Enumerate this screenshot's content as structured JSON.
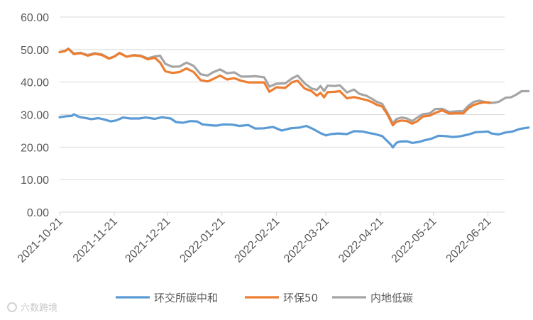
{
  "chart_data": {
    "type": "line",
    "title": "",
    "xlabel": "",
    "ylabel": "",
    "ylim": [
      0,
      60
    ],
    "yticks": [
      "0.00",
      "10.00",
      "20.00",
      "30.00",
      "40.00",
      "50.00",
      "60.00"
    ],
    "xticks": [
      "2021-10-21",
      "2021-11-21",
      "2021-12-21",
      "2022-01-21",
      "2022-02-21",
      "2022-03-21",
      "2022-04-21",
      "2022-05-21",
      "2022-06-21"
    ],
    "grid": "horizontal",
    "legend_position": "bottom",
    "series": [
      {
        "name": "环交所碳中和",
        "color": "#5b9bd5",
        "points": [
          [
            "2021-10-21",
            29.2
          ],
          [
            "2021-10-25",
            29.5
          ],
          [
            "2021-10-28",
            29.6
          ],
          [
            "2021-10-29",
            30.1
          ],
          [
            "2021-11-01",
            29.3
          ],
          [
            "2021-11-05",
            28.9
          ],
          [
            "2021-11-08",
            28.6
          ],
          [
            "2021-11-12",
            28.9
          ],
          [
            "2021-11-16",
            28.4
          ],
          [
            "2021-11-19",
            27.9
          ],
          [
            "2021-11-22",
            28.2
          ],
          [
            "2021-11-26",
            29.1
          ],
          [
            "2021-11-30",
            28.8
          ],
          [
            "2021-12-05",
            28.8
          ],
          [
            "2021-12-09",
            29.1
          ],
          [
            "2021-12-14",
            28.7
          ],
          [
            "2021-12-18",
            29.2
          ],
          [
            "2021-12-23",
            28.8
          ],
          [
            "2021-12-26",
            27.7
          ],
          [
            "2021-12-30",
            27.5
          ],
          [
            "2022-01-03",
            28.0
          ],
          [
            "2022-01-07",
            27.9
          ],
          [
            "2022-01-10",
            27.0
          ],
          [
            "2022-01-15",
            26.7
          ],
          [
            "2022-01-18",
            26.6
          ],
          [
            "2022-01-22",
            27.0
          ],
          [
            "2022-01-27",
            26.9
          ],
          [
            "2022-01-31",
            26.5
          ],
          [
            "2022-02-05",
            26.8
          ],
          [
            "2022-02-09",
            25.7
          ],
          [
            "2022-02-14",
            25.8
          ],
          [
            "2022-02-19",
            26.2
          ],
          [
            "2022-02-24",
            25.1
          ],
          [
            "2022-03-01",
            25.8
          ],
          [
            "2022-03-06",
            26.0
          ],
          [
            "2022-03-10",
            26.5
          ],
          [
            "2022-03-14",
            25.5
          ],
          [
            "2022-03-18",
            24.3
          ],
          [
            "2022-03-21",
            23.6
          ],
          [
            "2022-03-24",
            24.0
          ],
          [
            "2022-03-28",
            24.2
          ],
          [
            "2022-04-02",
            24.0
          ],
          [
            "2022-04-06",
            24.9
          ],
          [
            "2022-04-11",
            24.8
          ],
          [
            "2022-04-14",
            24.4
          ],
          [
            "2022-04-18",
            24.0
          ],
          [
            "2022-04-22",
            23.4
          ],
          [
            "2022-04-25",
            21.8
          ],
          [
            "2022-04-27",
            20.7
          ],
          [
            "2022-04-28",
            19.9
          ],
          [
            "2022-04-30",
            21.3
          ],
          [
            "2022-05-02",
            21.7
          ],
          [
            "2022-05-06",
            21.8
          ],
          [
            "2022-05-09",
            21.3
          ],
          [
            "2022-05-13",
            21.6
          ],
          [
            "2022-05-16",
            22.1
          ],
          [
            "2022-05-20",
            22.6
          ],
          [
            "2022-05-24",
            23.5
          ],
          [
            "2022-05-28",
            23.4
          ],
          [
            "2022-06-01",
            23.1
          ],
          [
            "2022-06-05",
            23.3
          ],
          [
            "2022-06-10",
            23.9
          ],
          [
            "2022-06-14",
            24.6
          ],
          [
            "2022-06-18",
            24.7
          ],
          [
            "2022-06-21",
            24.8
          ],
          [
            "2022-06-23",
            24.2
          ],
          [
            "2022-06-27",
            23.9
          ],
          [
            "2022-07-01",
            24.5
          ],
          [
            "2022-07-05",
            24.8
          ],
          [
            "2022-07-09",
            25.6
          ],
          [
            "2022-07-14",
            26.0
          ]
        ]
      },
      {
        "name": "环保50",
        "color": "#ed7d31",
        "points": [
          [
            "2021-10-21",
            49.2
          ],
          [
            "2021-10-24",
            49.5
          ],
          [
            "2021-10-26",
            50.2
          ],
          [
            "2021-10-29",
            48.6
          ],
          [
            "2021-11-02",
            48.9
          ],
          [
            "2021-11-06",
            48.1
          ],
          [
            "2021-11-10",
            48.7
          ],
          [
            "2021-11-14",
            48.3
          ],
          [
            "2021-11-18",
            47.2
          ],
          [
            "2021-11-21",
            47.8
          ],
          [
            "2021-11-24",
            48.9
          ],
          [
            "2021-11-28",
            47.8
          ],
          [
            "2021-12-02",
            48.2
          ],
          [
            "2021-12-06",
            48.0
          ],
          [
            "2021-12-10",
            47.0
          ],
          [
            "2021-12-14",
            47.5
          ],
          [
            "2021-12-17",
            46.0
          ],
          [
            "2021-12-20",
            43.3
          ],
          [
            "2021-12-24",
            42.8
          ],
          [
            "2021-12-28",
            43.1
          ],
          [
            "2022-01-01",
            44.2
          ],
          [
            "2022-01-05",
            43.1
          ],
          [
            "2022-01-09",
            40.6
          ],
          [
            "2022-01-13",
            40.2
          ],
          [
            "2022-01-16",
            40.9
          ],
          [
            "2022-01-20",
            42.0
          ],
          [
            "2022-01-24",
            40.8
          ],
          [
            "2022-01-28",
            41.2
          ],
          [
            "2022-02-01",
            40.4
          ],
          [
            "2022-02-05",
            39.9
          ],
          [
            "2022-02-09",
            39.9
          ],
          [
            "2022-02-14",
            39.9
          ],
          [
            "2022-02-17",
            37.0
          ],
          [
            "2022-02-21",
            38.4
          ],
          [
            "2022-02-26",
            38.2
          ],
          [
            "2022-03-02",
            40.0
          ],
          [
            "2022-03-05",
            40.4
          ],
          [
            "2022-03-09",
            38.0
          ],
          [
            "2022-03-13",
            37.2
          ],
          [
            "2022-03-16",
            35.8
          ],
          [
            "2022-03-18",
            36.7
          ],
          [
            "2022-03-20",
            35.3
          ],
          [
            "2022-03-22",
            36.9
          ],
          [
            "2022-03-26",
            37.0
          ],
          [
            "2022-03-29",
            37.2
          ],
          [
            "2022-04-02",
            35.0
          ],
          [
            "2022-04-06",
            35.4
          ],
          [
            "2022-04-09",
            35.0
          ],
          [
            "2022-04-13",
            34.5
          ],
          [
            "2022-04-16",
            33.9
          ],
          [
            "2022-04-19",
            33.0
          ],
          [
            "2022-04-22",
            32.5
          ],
          [
            "2022-04-25",
            30.0
          ],
          [
            "2022-04-28",
            26.7
          ],
          [
            "2022-04-30",
            27.8
          ],
          [
            "2022-05-03",
            28.2
          ],
          [
            "2022-05-06",
            28.0
          ],
          [
            "2022-05-09",
            27.2
          ],
          [
            "2022-05-12",
            28.0
          ],
          [
            "2022-05-15",
            29.4
          ],
          [
            "2022-05-19",
            29.7
          ],
          [
            "2022-05-22",
            30.5
          ],
          [
            "2022-05-26",
            31.3
          ],
          [
            "2022-05-30",
            30.3
          ],
          [
            "2022-06-03",
            30.4
          ],
          [
            "2022-06-07",
            30.4
          ],
          [
            "2022-06-10",
            32.0
          ],
          [
            "2022-06-13",
            33.0
          ],
          [
            "2022-06-16",
            33.5
          ],
          [
            "2022-06-19",
            33.8
          ],
          [
            "2022-06-22",
            33.6
          ]
        ]
      },
      {
        "name": "内地低碳",
        "color": "#a5a5a5",
        "points": [
          [
            "2021-10-21",
            49.2
          ],
          [
            "2021-10-24",
            49.6
          ],
          [
            "2021-10-26",
            50.3
          ],
          [
            "2021-10-29",
            48.8
          ],
          [
            "2021-11-02",
            49.0
          ],
          [
            "2021-11-06",
            48.3
          ],
          [
            "2021-11-10",
            48.9
          ],
          [
            "2021-11-14",
            48.5
          ],
          [
            "2021-11-18",
            47.3
          ],
          [
            "2021-11-21",
            47.9
          ],
          [
            "2021-11-24",
            49.0
          ],
          [
            "2021-11-28",
            47.8
          ],
          [
            "2021-12-02",
            48.3
          ],
          [
            "2021-12-06",
            48.1
          ],
          [
            "2021-12-10",
            47.3
          ],
          [
            "2021-12-14",
            47.9
          ],
          [
            "2021-12-17",
            48.1
          ],
          [
            "2021-12-20",
            45.6
          ],
          [
            "2021-12-24",
            44.7
          ],
          [
            "2021-12-28",
            44.8
          ],
          [
            "2022-01-01",
            46.0
          ],
          [
            "2022-01-05",
            45.0
          ],
          [
            "2022-01-09",
            42.4
          ],
          [
            "2022-01-13",
            42.0
          ],
          [
            "2022-01-16",
            43.0
          ],
          [
            "2022-01-20",
            43.9
          ],
          [
            "2022-01-24",
            42.7
          ],
          [
            "2022-01-28",
            43.0
          ],
          [
            "2022-02-01",
            41.7
          ],
          [
            "2022-02-05",
            41.7
          ],
          [
            "2022-02-09",
            41.8
          ],
          [
            "2022-02-14",
            41.5
          ],
          [
            "2022-02-17",
            38.6
          ],
          [
            "2022-02-21",
            39.5
          ],
          [
            "2022-02-26",
            39.6
          ],
          [
            "2022-03-02",
            41.2
          ],
          [
            "2022-03-05",
            42.0
          ],
          [
            "2022-03-09",
            39.6
          ],
          [
            "2022-03-13",
            38.0
          ],
          [
            "2022-03-16",
            37.6
          ],
          [
            "2022-03-18",
            38.8
          ],
          [
            "2022-03-20",
            37.2
          ],
          [
            "2022-03-22",
            38.9
          ],
          [
            "2022-03-26",
            38.8
          ],
          [
            "2022-03-29",
            39.0
          ],
          [
            "2022-04-02",
            36.8
          ],
          [
            "2022-04-06",
            37.7
          ],
          [
            "2022-04-09",
            36.4
          ],
          [
            "2022-04-13",
            35.8
          ],
          [
            "2022-04-16",
            34.9
          ],
          [
            "2022-04-19",
            33.9
          ],
          [
            "2022-04-22",
            33.3
          ],
          [
            "2022-04-25",
            30.5
          ],
          [
            "2022-04-28",
            27.3
          ],
          [
            "2022-04-30",
            28.6
          ],
          [
            "2022-05-03",
            29.1
          ],
          [
            "2022-05-06",
            28.8
          ],
          [
            "2022-05-09",
            28.0
          ],
          [
            "2022-05-12",
            29.1
          ],
          [
            "2022-05-15",
            30.1
          ],
          [
            "2022-05-19",
            30.4
          ],
          [
            "2022-05-22",
            31.7
          ],
          [
            "2022-05-26",
            31.8
          ],
          [
            "2022-05-30",
            30.8
          ],
          [
            "2022-06-03",
            31.0
          ],
          [
            "2022-06-07",
            31.1
          ],
          [
            "2022-06-10",
            32.8
          ],
          [
            "2022-06-13",
            33.9
          ],
          [
            "2022-06-16",
            34.3
          ],
          [
            "2022-06-19",
            33.9
          ],
          [
            "2022-06-22",
            33.7
          ],
          [
            "2022-06-24",
            33.6
          ],
          [
            "2022-06-27",
            33.9
          ],
          [
            "2022-07-01",
            35.2
          ],
          [
            "2022-07-04",
            35.3
          ],
          [
            "2022-07-07",
            36.1
          ],
          [
            "2022-07-10",
            37.2
          ],
          [
            "2022-07-14",
            37.2
          ]
        ]
      }
    ]
  },
  "watermark": {
    "icon": "logo-icon",
    "text": "六数跨境"
  }
}
